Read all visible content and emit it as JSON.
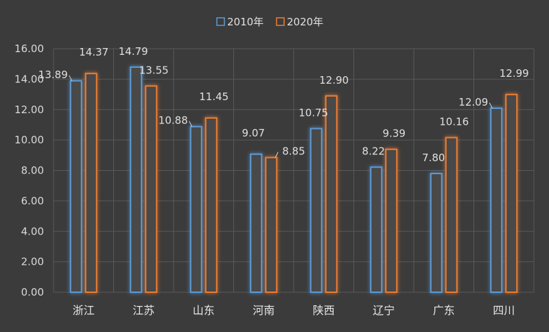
{
  "chart_data": {
    "type": "bar",
    "categories": [
      "浙江",
      "江苏",
      "山东",
      "河南",
      "陕西",
      "辽宁",
      "广东",
      "四川"
    ],
    "series": [
      {
        "name": "2010年",
        "color": "#5b9bd5",
        "values": [
          13.89,
          14.79,
          10.88,
          9.07,
          10.75,
          8.22,
          7.8,
          12.09
        ]
      },
      {
        "name": "2020年",
        "color": "#ed7d31",
        "values": [
          14.37,
          13.55,
          11.45,
          8.85,
          12.9,
          9.39,
          10.16,
          12.99
        ]
      }
    ],
    "data_labels": [
      [
        "13.89",
        "14.79",
        "10.88",
        "9.07",
        "10.75",
        "8.22",
        "7.80",
        "12.09"
      ],
      [
        "14.37",
        "13.55",
        "11.45",
        "8.85",
        "12.90",
        "9.39",
        "10.16",
        "12.99"
      ]
    ],
    "y_ticks": [
      "0.00",
      "2.00",
      "4.00",
      "6.00",
      "8.00",
      "10.00",
      "12.00",
      "14.00",
      "16.00"
    ],
    "ylim": [
      0,
      16
    ],
    "grid": true,
    "legend_position": "top",
    "title": "",
    "xlabel": "",
    "ylabel": ""
  }
}
